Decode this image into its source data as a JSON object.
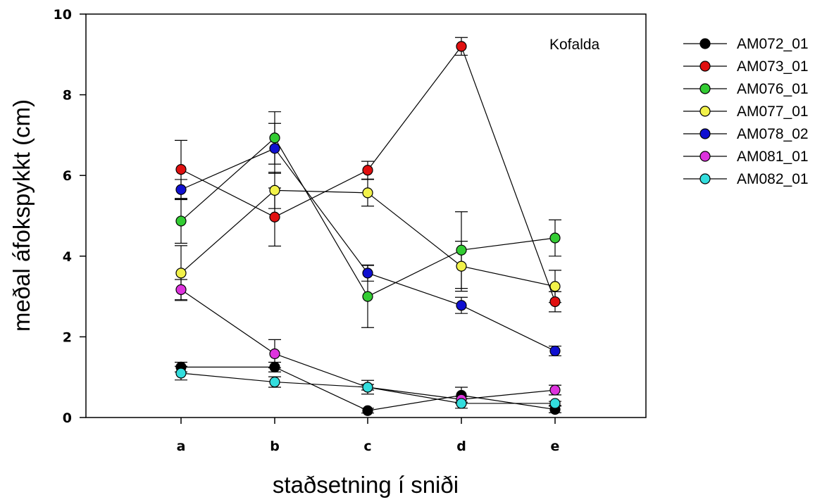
{
  "chart_data": {
    "type": "line",
    "title": "",
    "annotation": "Kofalda",
    "xlabel": "staðsetning í sniði",
    "ylabel": "meðal áfokspykkt (cm)",
    "categories": [
      "a",
      "b",
      "c",
      "d",
      "e"
    ],
    "ylim": [
      0,
      10
    ],
    "yticks": [
      0,
      2,
      4,
      6,
      8,
      10
    ],
    "grid": false,
    "legend_position": "right",
    "series": [
      {
        "name": "AM072_01",
        "color": "#000000",
        "values": [
          1.25,
          1.25,
          0.17,
          0.55,
          0.2
        ],
        "err": [
          0.12,
          0.12,
          0.06,
          0.2,
          0.08
        ]
      },
      {
        "name": "AM073_01",
        "color": "#e01010",
        "values": [
          6.15,
          4.97,
          6.13,
          9.2,
          2.87
        ],
        "err": [
          0.72,
          0.72,
          0.22,
          0.22,
          0.25
        ]
      },
      {
        "name": "AM076_01",
        "color": "#33cc33",
        "values": [
          4.87,
          6.93,
          3.0,
          4.15,
          4.45
        ],
        "err": [
          0.55,
          0.65,
          0.77,
          0.95,
          0.45
        ]
      },
      {
        "name": "AM077_01",
        "color": "#f2f24a",
        "values": [
          3.58,
          5.63,
          5.57,
          3.75,
          3.25
        ],
        "err": [
          0.68,
          0.45,
          0.33,
          0.62,
          0.4
        ]
      },
      {
        "name": "AM078_02",
        "color": "#1010d0",
        "values": [
          5.65,
          6.67,
          3.58,
          2.78,
          1.65
        ],
        "err": [
          0.25,
          0.62,
          0.2,
          0.2,
          0.12
        ]
      },
      {
        "name": "AM081_01",
        "color": "#dd33dd",
        "values": [
          3.17,
          1.58,
          0.75,
          0.45,
          0.68
        ],
        "err": [
          0.25,
          0.35,
          0.07,
          0.07,
          0.12
        ]
      },
      {
        "name": "AM082_01",
        "color": "#33dddd",
        "values": [
          1.1,
          0.88,
          0.75,
          0.35,
          0.35
        ],
        "err": [
          0.17,
          0.13,
          0.17,
          0.12,
          0.05
        ]
      }
    ]
  }
}
